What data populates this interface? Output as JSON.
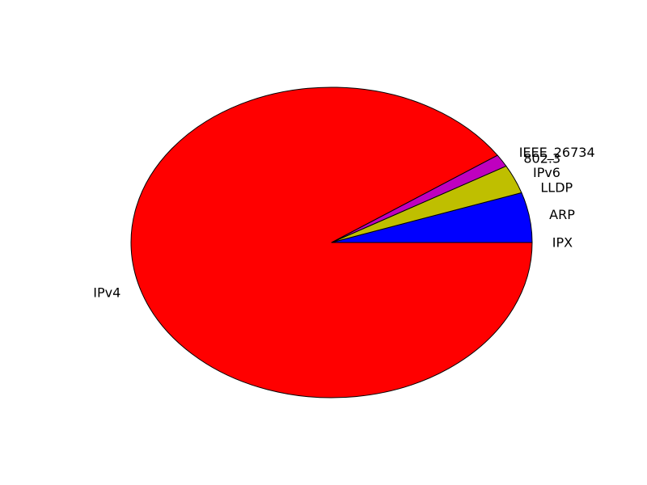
{
  "chart_data": {
    "type": "pie",
    "title": "",
    "start_angle_deg": 0,
    "direction": "counterclockwise",
    "slices": [
      {
        "label": "IPX",
        "value": 0.0,
        "color": "#ffff00"
      },
      {
        "label": "ARP",
        "value": 5.2,
        "color": "#0000ff"
      },
      {
        "label": "LLDP",
        "value": 0.0,
        "color": "#00ffff"
      },
      {
        "label": "IPv6",
        "value": 3.0,
        "color": "#bfbf00"
      },
      {
        "label": "802.3",
        "value": 0.0,
        "color": "#00bf00"
      },
      {
        "label": "IEEE_26734",
        "value": 1.3,
        "color": "#bf00bf"
      },
      {
        "label": "IPv4",
        "value": 90.5,
        "color": "#ff0000"
      }
    ]
  }
}
